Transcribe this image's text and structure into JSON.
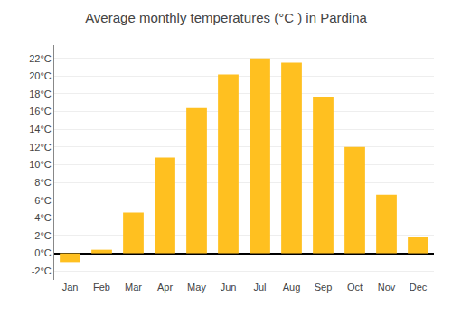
{
  "chart_data": {
    "type": "bar",
    "title": "Average monthly temperatures (°C ) in Pardina",
    "categories": [
      "Jan",
      "Feb",
      "Mar",
      "Apr",
      "May",
      "Jun",
      "Jul",
      "Aug",
      "Sep",
      "Oct",
      "Nov",
      "Dec"
    ],
    "values": [
      -1.0,
      0.4,
      4.6,
      10.8,
      16.4,
      20.2,
      22.0,
      21.5,
      17.7,
      12.0,
      6.6,
      1.8
    ],
    "color": "#FFC020",
    "ylim": [
      -3.0,
      23.5
    ],
    "yticks": [
      {
        "value": -2,
        "label": "-2°C"
      },
      {
        "value": 0,
        "label": "0°C"
      },
      {
        "value": 2,
        "label": "2°C"
      },
      {
        "value": 4,
        "label": "4°C"
      },
      {
        "value": 6,
        "label": "6°C"
      },
      {
        "value": 8,
        "label": "8°C"
      },
      {
        "value": 10,
        "label": "10°C"
      },
      {
        "value": 12,
        "label": "12°C"
      },
      {
        "value": 14,
        "label": "14°C"
      },
      {
        "value": 16,
        "label": "16°C"
      },
      {
        "value": 18,
        "label": "18°C"
      },
      {
        "value": 20,
        "label": "20°C"
      },
      {
        "value": 22,
        "label": "22°C"
      }
    ],
    "grid": true
  }
}
